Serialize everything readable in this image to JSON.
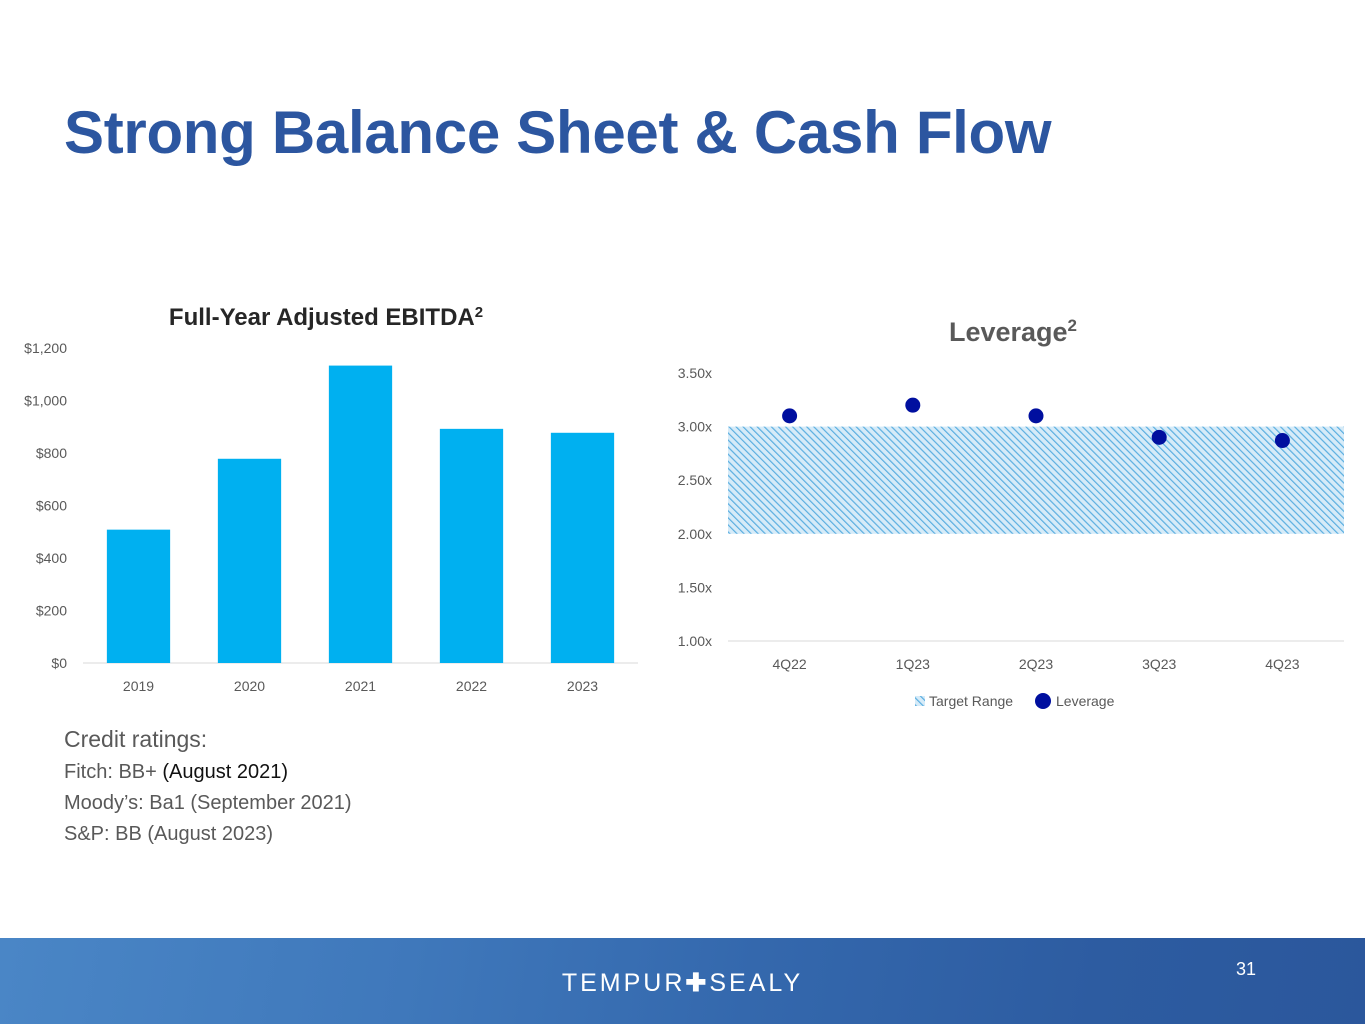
{
  "title": "Strong Balance Sheet & Cash Flow",
  "chart_data": [
    {
      "type": "bar",
      "title": "Full-Year Adjusted EBITDA",
      "title_superscript": "2",
      "categories": [
        "2019",
        "2020",
        "2021",
        "2022",
        "2023"
      ],
      "values": [
        508,
        778,
        1133,
        892,
        877
      ],
      "ylim": [
        0,
        1200
      ],
      "y_ticks": [
        "$0",
        "$200",
        "$400",
        "$600",
        "$800",
        "$1,000",
        "$1,200"
      ],
      "color": "#00b0f0"
    },
    {
      "type": "scatter",
      "title": "Leverage",
      "title_superscript": "2",
      "categories": [
        "4Q22",
        "1Q23",
        "2Q23",
        "3Q23",
        "4Q23"
      ],
      "values": [
        3.1,
        3.2,
        3.1,
        2.9,
        2.87
      ],
      "target_range": [
        2.0,
        3.0
      ],
      "ylim": [
        1.0,
        3.5
      ],
      "y_ticks": [
        "1.00x",
        "1.50x",
        "2.00x",
        "2.50x",
        "3.00x",
        "3.50x"
      ],
      "legend": [
        "Target Range",
        "Leverage"
      ],
      "point_color": "#000f9f",
      "range_color": "#5aaee0"
    }
  ],
  "credit": {
    "heading": "Credit ratings:",
    "fitch_prefix": "Fitch: BB+ ",
    "fitch_date": "(August 2021)",
    "moodys": "Moody’s: Ba1 (September 2021)",
    "sp": "S&P: BB (August 2023)"
  },
  "footer": {
    "logo_left": "TEMPUR",
    "logo_plus": "✚",
    "logo_right": "SEALY",
    "page_number": "31"
  }
}
